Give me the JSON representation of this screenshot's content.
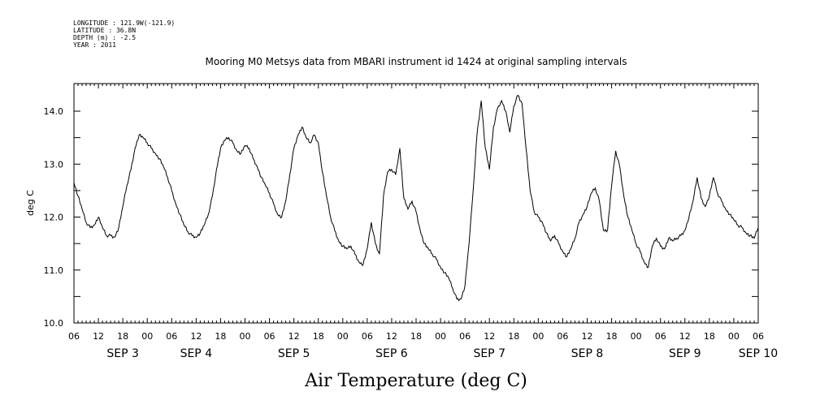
{
  "header": {
    "longitude": "LONGITUDE : 121.9W(-121.9)",
    "latitude": "LATITUDE : 36.8N",
    "depth": "DEPTH (m) : -2.5",
    "year": "YEAR : 2011"
  },
  "chart_data": {
    "type": "line",
    "title": "Mooring M0 Metsys data from MBARI instrument id 1424 at original sampling intervals",
    "footer": "Air Temperature (deg C)",
    "ylabel": "deg C",
    "xlabel": "",
    "ylim": [
      10.0,
      14.4
    ],
    "yticks": [
      "10.0",
      "11.0",
      "12.0",
      "13.0",
      "14.0"
    ],
    "xrange_hours": [
      0,
      168
    ],
    "hour_tick_labels": [
      "06",
      "12",
      "18",
      "00",
      "06",
      "12",
      "18",
      "00",
      "06",
      "12",
      "18",
      "00",
      "06",
      "12",
      "18",
      "00",
      "06",
      "12",
      "18",
      "00",
      "06",
      "12",
      "18",
      "00",
      "06",
      "12",
      "18",
      "00",
      "06"
    ],
    "day_labels": [
      {
        "label": "SEP  3",
        "hour": 12
      },
      {
        "label": "SEP  4",
        "hour": 30
      },
      {
        "label": "SEP  5",
        "hour": 54
      },
      {
        "label": "SEP  6",
        "hour": 78
      },
      {
        "label": "SEP  7",
        "hour": 102
      },
      {
        "label": "SEP  8",
        "hour": 126
      },
      {
        "label": "SEP  9",
        "hour": 150
      },
      {
        "label": "SEP 10",
        "hour": 168
      }
    ],
    "grid": false,
    "series": [
      {
        "x_hours": [
          0,
          1,
          2,
          3,
          4,
          5,
          6,
          7,
          8,
          9,
          10,
          11,
          12,
          13,
          14,
          15,
          16,
          17,
          18,
          19,
          20,
          21,
          22,
          23,
          24,
          25,
          26,
          27,
          28,
          29,
          30,
          31,
          32,
          33,
          34,
          35,
          36,
          37,
          38,
          39,
          40,
          41,
          42,
          43,
          44,
          45,
          46,
          47,
          48,
          49,
          50,
          51,
          52,
          53,
          54,
          55,
          56,
          57,
          58,
          59,
          60,
          61,
          62,
          63,
          64,
          65,
          66,
          67,
          68,
          69,
          70,
          71,
          72,
          73,
          74,
          75,
          76,
          77,
          78,
          79,
          80,
          81,
          82,
          83,
          84,
          85,
          86,
          87,
          88,
          89,
          90,
          91,
          92,
          93,
          94,
          95,
          96,
          97,
          98,
          99,
          100,
          101,
          102,
          103,
          104,
          105,
          106,
          107,
          108,
          109,
          110,
          111,
          112,
          113,
          114,
          115,
          116,
          117,
          118,
          119,
          120,
          121,
          122,
          123,
          124,
          125,
          126,
          127,
          128,
          129,
          130,
          131,
          132,
          133,
          134,
          135,
          136,
          137,
          138,
          139,
          140,
          141,
          142,
          143,
          144,
          145,
          146,
          147,
          148,
          149,
          150,
          151,
          152,
          153,
          154,
          155,
          156,
          157,
          158,
          159,
          160,
          161,
          162,
          163,
          164,
          165,
          166,
          167,
          168
        ],
        "values": [
          12.65,
          12.4,
          12.15,
          11.9,
          11.8,
          11.85,
          12.0,
          11.8,
          11.65,
          11.65,
          11.62,
          11.8,
          12.2,
          12.6,
          12.9,
          13.3,
          13.55,
          13.5,
          13.4,
          13.3,
          13.2,
          13.1,
          12.95,
          12.75,
          12.5,
          12.25,
          12.05,
          11.85,
          11.72,
          11.65,
          11.62,
          11.7,
          11.85,
          12.05,
          12.4,
          12.9,
          13.3,
          13.45,
          13.5,
          13.4,
          13.25,
          13.2,
          13.35,
          13.3,
          13.1,
          12.95,
          12.75,
          12.6,
          12.45,
          12.25,
          12.05,
          12.0,
          12.3,
          12.8,
          13.3,
          13.55,
          13.7,
          13.5,
          13.4,
          13.55,
          13.4,
          12.85,
          12.4,
          12.0,
          11.75,
          11.55,
          11.45,
          11.4,
          11.45,
          11.3,
          11.15,
          11.1,
          11.4,
          11.9,
          11.5,
          11.3,
          12.4,
          12.85,
          12.9,
          12.8,
          13.3,
          12.35,
          12.15,
          12.3,
          12.1,
          11.75,
          11.5,
          11.4,
          11.3,
          11.2,
          11.05,
          10.95,
          10.85,
          10.65,
          10.45,
          10.45,
          10.7,
          11.5,
          12.5,
          13.6,
          14.2,
          13.3,
          12.9,
          13.7,
          14.05,
          14.2,
          14.0,
          13.6,
          14.1,
          14.3,
          14.15,
          13.3,
          12.5,
          12.1,
          12.0,
          11.9,
          11.7,
          11.55,
          11.65,
          11.5,
          11.35,
          11.25,
          11.4,
          11.6,
          11.9,
          12.05,
          12.2,
          12.45,
          12.55,
          12.3,
          11.75,
          11.75,
          12.6,
          13.25,
          12.95,
          12.4,
          12.0,
          11.75,
          11.5,
          11.35,
          11.15,
          11.05,
          11.45,
          11.6,
          11.45,
          11.4,
          11.6,
          11.55,
          11.6,
          11.65,
          11.75,
          12.0,
          12.3,
          12.75,
          12.35,
          12.2,
          12.4,
          12.75,
          12.45,
          12.3,
          12.15,
          12.05,
          11.95,
          11.85,
          11.8,
          11.7,
          11.65,
          11.6,
          11.8
        ]
      }
    ]
  }
}
